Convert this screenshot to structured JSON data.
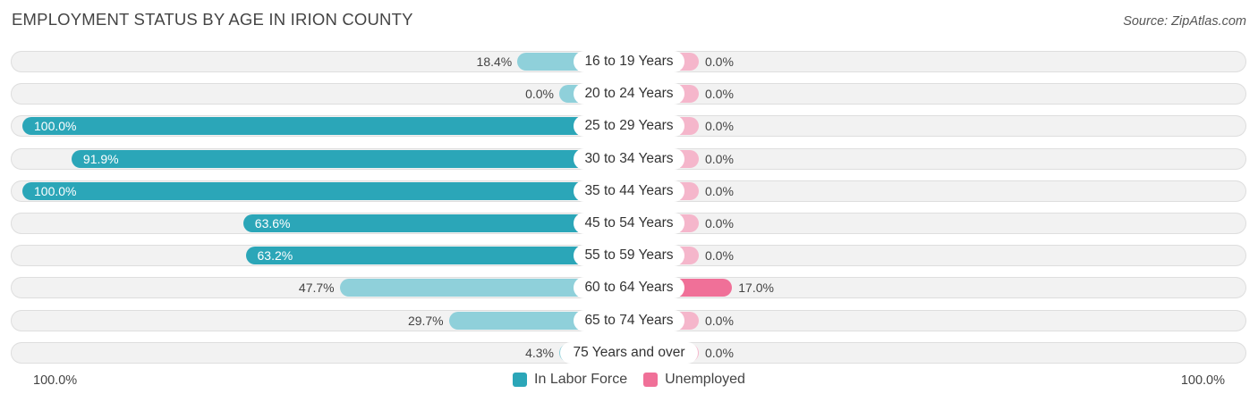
{
  "title": "EMPLOYMENT STATUS BY AGE IN IRION COUNTY",
  "source": "Source: ZipAtlas.com",
  "colors": {
    "labor_force_strong": "#2ba6b8",
    "labor_force_light": "#8fd0da",
    "unemployed_strong": "#f07098",
    "unemployed_light": "#f5b6cb"
  },
  "chart_data": {
    "type": "bar",
    "orientation": "horizontal-diverging",
    "title": "EMPLOYMENT STATUS BY AGE IN IRION COUNTY",
    "categories": [
      "16 to 19 Years",
      "20 to 24 Years",
      "25 to 29 Years",
      "30 to 34 Years",
      "35 to 44 Years",
      "45 to 54 Years",
      "55 to 59 Years",
      "60 to 64 Years",
      "65 to 74 Years",
      "75 Years and over"
    ],
    "series": [
      {
        "name": "In Labor Force",
        "side": "left",
        "values": [
          18.4,
          0.0,
          100.0,
          91.9,
          100.0,
          63.6,
          63.2,
          47.7,
          29.7,
          4.3
        ],
        "labels": [
          "18.4%",
          "0.0%",
          "100.0%",
          "91.9%",
          "100.0%",
          "63.6%",
          "63.2%",
          "47.7%",
          "29.7%",
          "4.3%"
        ]
      },
      {
        "name": "Unemployed",
        "side": "right",
        "values": [
          0.0,
          0.0,
          0.0,
          0.0,
          0.0,
          0.0,
          0.0,
          17.0,
          0.0,
          0.0
        ],
        "labels": [
          "0.0%",
          "0.0%",
          "0.0%",
          "0.0%",
          "0.0%",
          "0.0%",
          "0.0%",
          "17.0%",
          "0.0%",
          "0.0%"
        ]
      }
    ],
    "xlim": [
      -100,
      100
    ],
    "axis_left_label": "100.0%",
    "axis_right_label": "100.0%",
    "legend": [
      "In Labor Force",
      "Unemployed"
    ],
    "legend_position": "bottom-center"
  }
}
